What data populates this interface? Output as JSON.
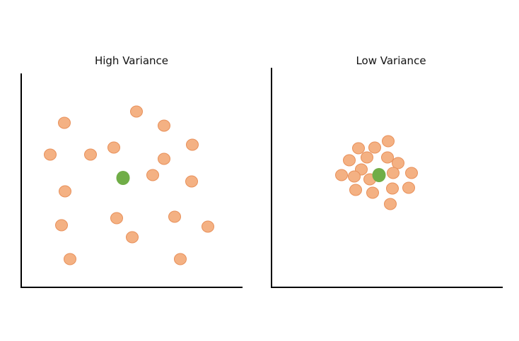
{
  "panels": [
    {
      "title": "High Variance",
      "point_color": "#f4b183",
      "point_stroke": "#e8905a",
      "center_color": "#70ad47"
    },
    {
      "title": "Low Variance",
      "point_color": "#f4b183",
      "point_stroke": "#e8905a",
      "center_color": "#70ad47"
    }
  ]
}
